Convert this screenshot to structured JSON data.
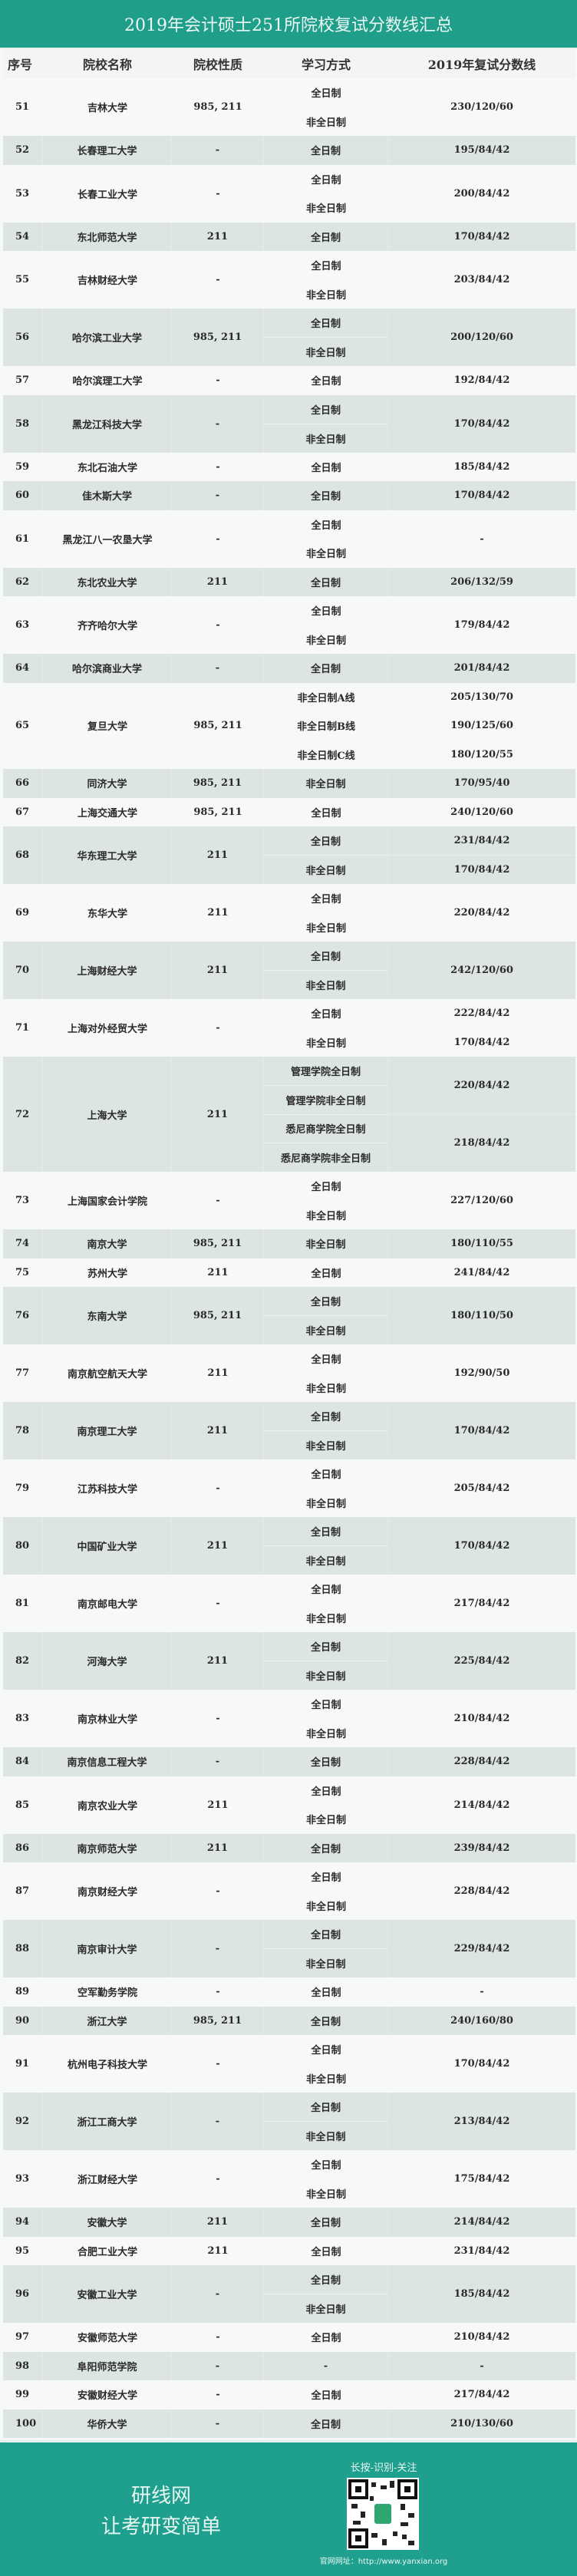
{
  "title": "2019年会计硕士251所院校复试分数线汇总",
  "headers": [
    "序号",
    "院校名称",
    "院校性质",
    "学习方式",
    "2019年复试分数线"
  ],
  "colors": {
    "accent": "#1f9e8a",
    "row_alt": "#dde5e0",
    "row": "#f7f9f8"
  },
  "rows": [
    {
      "no": "51",
      "name": "吉林大学",
      "type": "985, 211",
      "modes": [
        "全日制",
        "非全日制"
      ],
      "scores": [
        "230/120/60"
      ]
    },
    {
      "no": "52",
      "name": "长春理工大学",
      "type": "-",
      "modes": [
        "全日制"
      ],
      "scores": [
        "195/84/42"
      ]
    },
    {
      "no": "53",
      "name": "长春工业大学",
      "type": "-",
      "modes": [
        "全日制",
        "非全日制"
      ],
      "scores": [
        "200/84/42"
      ]
    },
    {
      "no": "54",
      "name": "东北师范大学",
      "type": "211",
      "modes": [
        "全日制"
      ],
      "scores": [
        "170/84/42"
      ]
    },
    {
      "no": "55",
      "name": "吉林财经大学",
      "type": "-",
      "modes": [
        "全日制",
        "非全日制"
      ],
      "scores": [
        "203/84/42"
      ]
    },
    {
      "no": "56",
      "name": "哈尔滨工业大学",
      "type": "985, 211",
      "modes": [
        "全日制",
        "非全日制"
      ],
      "scores": [
        "200/120/60"
      ]
    },
    {
      "no": "57",
      "name": "哈尔滨理工大学",
      "type": "-",
      "modes": [
        "全日制"
      ],
      "scores": [
        "192/84/42"
      ]
    },
    {
      "no": "58",
      "name": "黑龙江科技大学",
      "type": "-",
      "modes": [
        "全日制",
        "非全日制"
      ],
      "scores": [
        "170/84/42"
      ]
    },
    {
      "no": "59",
      "name": "东北石油大学",
      "type": "-",
      "modes": [
        "全日制"
      ],
      "scores": [
        "185/84/42"
      ]
    },
    {
      "no": "60",
      "name": "佳木斯大学",
      "type": "-",
      "modes": [
        "全日制"
      ],
      "scores": [
        "170/84/42"
      ]
    },
    {
      "no": "61",
      "name": "黑龙江八一农垦大学",
      "type": "-",
      "modes": [
        "全日制",
        "非全日制"
      ],
      "scores": [
        "-"
      ]
    },
    {
      "no": "62",
      "name": "东北农业大学",
      "type": "211",
      "modes": [
        "全日制"
      ],
      "scores": [
        "206/132/59"
      ]
    },
    {
      "no": "63",
      "name": "齐齐哈尔大学",
      "type": "-",
      "modes": [
        "全日制",
        "非全日制"
      ],
      "scores": [
        "179/84/42"
      ]
    },
    {
      "no": "64",
      "name": "哈尔滨商业大学",
      "type": "-",
      "modes": [
        "全日制"
      ],
      "scores": [
        "201/84/42"
      ]
    },
    {
      "no": "65",
      "name": "复旦大学",
      "type": "985, 211",
      "modes": [
        "非全日制A线",
        "非全日制B线",
        "非全日制C线"
      ],
      "scores": [
        "205/130/70",
        "190/125/60",
        "180/120/55"
      ]
    },
    {
      "no": "66",
      "name": "同济大学",
      "type": "985, 211",
      "modes": [
        "非全日制"
      ],
      "scores": [
        "170/95/40"
      ]
    },
    {
      "no": "67",
      "name": "上海交通大学",
      "type": "985, 211",
      "modes": [
        "全日制"
      ],
      "scores": [
        "240/120/60"
      ]
    },
    {
      "no": "68",
      "name": "华东理工大学",
      "type": "211",
      "modes": [
        "全日制",
        "非全日制"
      ],
      "scores": [
        "231/84/42",
        "170/84/42"
      ]
    },
    {
      "no": "69",
      "name": "东华大学",
      "type": "211",
      "modes": [
        "全日制",
        "非全日制"
      ],
      "scores": [
        "220/84/42"
      ]
    },
    {
      "no": "70",
      "name": "上海财经大学",
      "type": "211",
      "modes": [
        "全日制",
        "非全日制"
      ],
      "scores": [
        "242/120/60"
      ]
    },
    {
      "no": "71",
      "name": "上海对外经贸大学",
      "type": "-",
      "modes": [
        "全日制",
        "非全日制"
      ],
      "scores": [
        "222/84/42",
        "170/84/42"
      ]
    },
    {
      "no": "72",
      "name": "上海大学",
      "type": "211",
      "modes": [
        "管理学院全日制",
        "管理学院非全日制",
        "悉尼商学院全日制",
        "悉尼商学院非全日制"
      ],
      "scores": [
        "220/84/42",
        "218/84/42"
      ]
    },
    {
      "no": "73",
      "name": "上海国家会计学院",
      "type": "-",
      "modes": [
        "全日制",
        "非全日制"
      ],
      "scores": [
        "227/120/60"
      ]
    },
    {
      "no": "74",
      "name": "南京大学",
      "type": "985, 211",
      "modes": [
        "非全日制"
      ],
      "scores": [
        "180/110/55"
      ]
    },
    {
      "no": "75",
      "name": "苏州大学",
      "type": "211",
      "modes": [
        "全日制"
      ],
      "scores": [
        "241/84/42"
      ]
    },
    {
      "no": "76",
      "name": "东南大学",
      "type": "985, 211",
      "modes": [
        "全日制",
        "非全日制"
      ],
      "scores": [
        "180/110/50"
      ]
    },
    {
      "no": "77",
      "name": "南京航空航天大学",
      "type": "211",
      "modes": [
        "全日制",
        "非全日制"
      ],
      "scores": [
        "192/90/50"
      ]
    },
    {
      "no": "78",
      "name": "南京理工大学",
      "type": "211",
      "modes": [
        "全日制",
        "非全日制"
      ],
      "scores": [
        "170/84/42"
      ]
    },
    {
      "no": "79",
      "name": "江苏科技大学",
      "type": "-",
      "modes": [
        "全日制",
        "非全日制"
      ],
      "scores": [
        "205/84/42"
      ]
    },
    {
      "no": "80",
      "name": "中国矿业大学",
      "type": "211",
      "modes": [
        "全日制",
        "非全日制"
      ],
      "scores": [
        "170/84/42"
      ]
    },
    {
      "no": "81",
      "name": "南京邮电大学",
      "type": "-",
      "modes": [
        "全日制",
        "非全日制"
      ],
      "scores": [
        "217/84/42"
      ]
    },
    {
      "no": "82",
      "name": "河海大学",
      "type": "211",
      "modes": [
        "全日制",
        "非全日制"
      ],
      "scores": [
        "225/84/42"
      ]
    },
    {
      "no": "83",
      "name": "南京林业大学",
      "type": "-",
      "modes": [
        "全日制",
        "非全日制"
      ],
      "scores": [
        "210/84/42"
      ]
    },
    {
      "no": "84",
      "name": "南京信息工程大学",
      "type": "-",
      "modes": [
        "全日制"
      ],
      "scores": [
        "228/84/42"
      ]
    },
    {
      "no": "85",
      "name": "南京农业大学",
      "type": "211",
      "modes": [
        "全日制",
        "非全日制"
      ],
      "scores": [
        "214/84/42"
      ]
    },
    {
      "no": "86",
      "name": "南京师范大学",
      "type": "211",
      "modes": [
        "全日制"
      ],
      "scores": [
        "239/84/42"
      ]
    },
    {
      "no": "87",
      "name": "南京财经大学",
      "type": "-",
      "modes": [
        "全日制",
        "非全日制"
      ],
      "scores": [
        "228/84/42"
      ]
    },
    {
      "no": "88",
      "name": "南京审计大学",
      "type": "-",
      "modes": [
        "全日制",
        "非全日制"
      ],
      "scores": [
        "229/84/42"
      ]
    },
    {
      "no": "89",
      "name": "空军勤务学院",
      "type": "-",
      "modes": [
        "全日制"
      ],
      "scores": [
        "-"
      ]
    },
    {
      "no": "90",
      "name": "浙江大学",
      "type": "985, 211",
      "modes": [
        "全日制"
      ],
      "scores": [
        "240/160/80"
      ]
    },
    {
      "no": "91",
      "name": "杭州电子科技大学",
      "type": "-",
      "modes": [
        "全日制",
        "非全日制"
      ],
      "scores": [
        "170/84/42"
      ]
    },
    {
      "no": "92",
      "name": "浙江工商大学",
      "type": "-",
      "modes": [
        "全日制",
        "非全日制"
      ],
      "scores": [
        "213/84/42"
      ]
    },
    {
      "no": "93",
      "name": "浙江财经大学",
      "type": "-",
      "modes": [
        "全日制",
        "非全日制"
      ],
      "scores": [
        "175/84/42"
      ]
    },
    {
      "no": "94",
      "name": "安徽大学",
      "type": "211",
      "modes": [
        "全日制"
      ],
      "scores": [
        "214/84/42"
      ]
    },
    {
      "no": "95",
      "name": "合肥工业大学",
      "type": "211",
      "modes": [
        "全日制"
      ],
      "scores": [
        "231/84/42"
      ]
    },
    {
      "no": "96",
      "name": "安徽工业大学",
      "type": "-",
      "modes": [
        "全日制",
        "非全日制"
      ],
      "scores": [
        "185/84/42"
      ]
    },
    {
      "no": "97",
      "name": "安徽师范大学",
      "type": "-",
      "modes": [
        "全日制"
      ],
      "scores": [
        "210/84/42"
      ]
    },
    {
      "no": "98",
      "name": "阜阳师范学院",
      "type": "-",
      "modes": [
        "-"
      ],
      "scores": [
        "-"
      ]
    },
    {
      "no": "99",
      "name": "安徽财经大学",
      "type": "-",
      "modes": [
        "全日制"
      ],
      "scores": [
        "217/84/42"
      ]
    },
    {
      "no": "100",
      "name": "华侨大学",
      "type": "-",
      "modes": [
        "全日制"
      ],
      "scores": [
        "210/130/60"
      ]
    }
  ],
  "footer": {
    "brand": "研线网",
    "slogan": "让考研变简单",
    "follow": "长按-识别-关注",
    "site": "官网网址：http://www.yanxian.org",
    "qr_icon": "qr-code-icon"
  }
}
